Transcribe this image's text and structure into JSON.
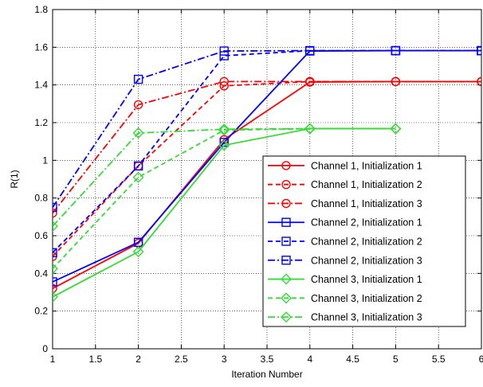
{
  "chart_data": {
    "type": "line",
    "title": "",
    "xlabel": "Iteration Number",
    "ylabel": "R(1)",
    "xlim": [
      1,
      6
    ],
    "ylim": [
      0,
      1.8
    ],
    "xticks": [
      1,
      1.5,
      2,
      2.5,
      3,
      3.5,
      4,
      4.5,
      5,
      5.5,
      6
    ],
    "xtick_labels": [
      "1",
      "1.5",
      "2",
      "2.5",
      "3",
      "3.5",
      "4",
      "4.5",
      "5",
      "5.5",
      "6"
    ],
    "yticks": [
      0,
      0.2,
      0.4,
      0.6,
      0.8,
      1,
      1.2,
      1.4,
      1.6,
      1.8
    ],
    "ytick_labels": [
      "0",
      "0.2",
      "0.4",
      "0.6",
      "0.8",
      "1",
      "1.2",
      "1.4",
      "1.6",
      "1.8"
    ],
    "grid": true,
    "legend_position": "right",
    "series": [
      {
        "name": "Channel 1, Initialization 1",
        "color": "#ff0000",
        "dash": "solid",
        "marker": "circle",
        "x": [
          1,
          2,
          3,
          4,
          5,
          6
        ],
        "y": [
          0.32,
          0.56,
          1.11,
          1.415,
          1.418,
          1.418
        ]
      },
      {
        "name": "Channel 1, Initialization 2",
        "color": "#ff0000",
        "dash": "dashed",
        "marker": "circle",
        "x": [
          1,
          2,
          3,
          4,
          5,
          6
        ],
        "y": [
          0.49,
          0.97,
          1.395,
          1.418,
          1.418,
          1.418
        ]
      },
      {
        "name": "Channel 1, Initialization 3",
        "color": "#ff0000",
        "dash": "dashdot",
        "marker": "circle",
        "x": [
          1,
          2,
          3,
          4,
          5,
          6
        ],
        "y": [
          0.72,
          1.295,
          1.418,
          1.418,
          1.418,
          1.418
        ]
      },
      {
        "name": "Channel 2, Initialization 1",
        "color": "#0000ff",
        "dash": "solid",
        "marker": "square",
        "x": [
          1,
          2,
          3,
          4,
          5,
          6
        ],
        "y": [
          0.355,
          0.565,
          1.095,
          1.58,
          1.582,
          1.582
        ]
      },
      {
        "name": "Channel 2, Initialization 2",
        "color": "#0000ff",
        "dash": "dashed",
        "marker": "square",
        "x": [
          1,
          2,
          3,
          4,
          5,
          6
        ],
        "y": [
          0.51,
          0.97,
          1.555,
          1.582,
          1.582,
          1.582
        ]
      },
      {
        "name": "Channel 2, Initialization 3",
        "color": "#0000ff",
        "dash": "dashdot",
        "marker": "square",
        "x": [
          1,
          2,
          3,
          4,
          5,
          6
        ],
        "y": [
          0.75,
          1.43,
          1.58,
          1.582,
          1.582,
          1.582
        ]
      },
      {
        "name": "Channel 3, Initialization 1",
        "color": "#33dd33",
        "dash": "solid",
        "marker": "diamond",
        "x": [
          1,
          2,
          3,
          4,
          5
        ],
        "y": [
          0.275,
          0.515,
          1.08,
          1.168,
          1.168
        ]
      },
      {
        "name": "Channel 3, Initialization 2",
        "color": "#33dd33",
        "dash": "dashed",
        "marker": "diamond",
        "x": [
          1,
          2,
          3,
          4,
          5
        ],
        "y": [
          0.425,
          0.91,
          1.16,
          1.168,
          1.168
        ]
      },
      {
        "name": "Channel 3, Initialization 3",
        "color": "#33dd33",
        "dash": "dashdot",
        "marker": "diamond",
        "x": [
          1,
          2,
          3,
          4,
          5
        ],
        "y": [
          0.65,
          1.145,
          1.165,
          1.168,
          1.168
        ]
      }
    ]
  }
}
